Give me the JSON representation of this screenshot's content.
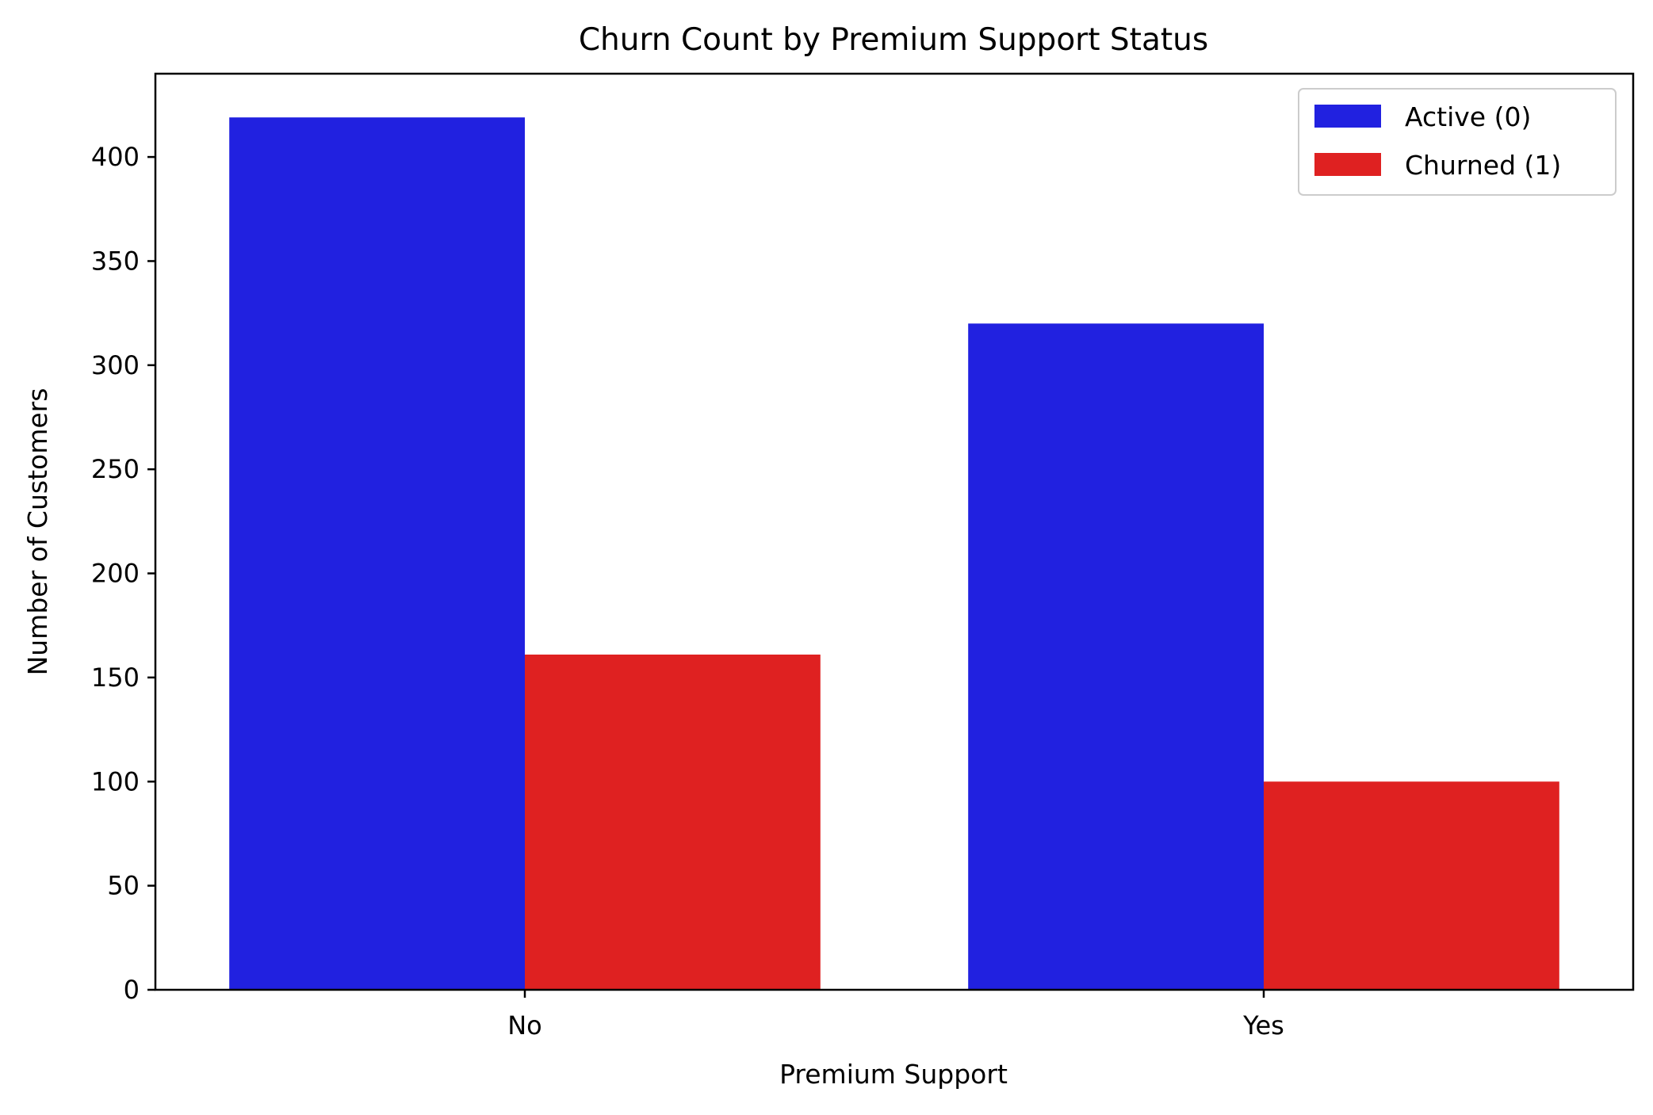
{
  "chart_data": {
    "type": "bar",
    "title": "Churn Count by Premium Support Status",
    "xlabel": "Premium Support",
    "ylabel": "Number of Customers",
    "categories": [
      "No",
      "Yes"
    ],
    "series": [
      {
        "name": "Active (0)",
        "color": "#2121e0",
        "values": [
          419,
          320
        ]
      },
      {
        "name": "Churned (1)",
        "color": "#df2121",
        "values": [
          161,
          100
        ]
      }
    ],
    "ylim": [
      0,
      440
    ],
    "yticks": [
      0,
      50,
      100,
      150,
      200,
      250,
      300,
      350,
      400
    ],
    "grid": false,
    "legend_position": "top-right"
  }
}
